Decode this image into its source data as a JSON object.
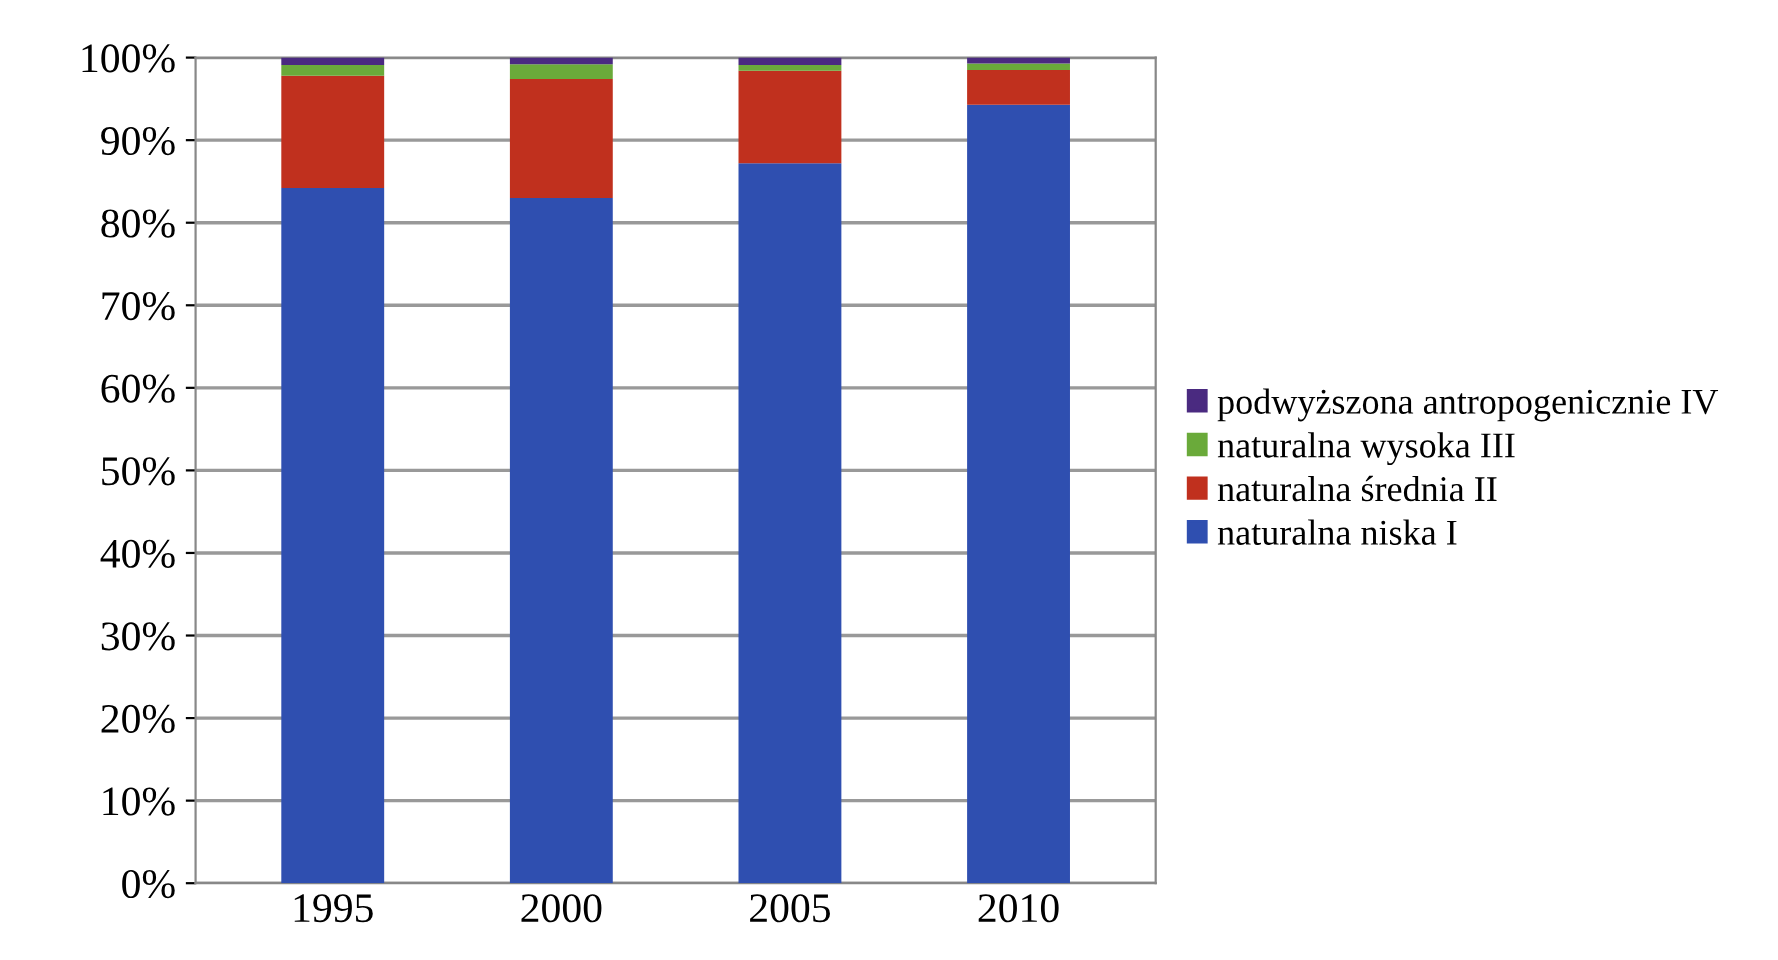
{
  "chart_data": {
    "type": "bar",
    "stacked": true,
    "categories": [
      "1995",
      "2000",
      "2005",
      "2010"
    ],
    "series": [
      {
        "name": "naturalna niska I",
        "color": "#2f4fb0",
        "values": [
          84.2,
          83.0,
          87.2,
          94.3
        ]
      },
      {
        "name": "naturalna średnia II",
        "color": "#c0301e",
        "values": [
          13.6,
          14.4,
          11.2,
          4.2
        ]
      },
      {
        "name": "naturalna wysoka III",
        "color": "#6aaa3a",
        "values": [
          1.3,
          1.8,
          0.7,
          0.8
        ]
      },
      {
        "name": "podwyższona antropogenicznie IV",
        "color": "#4a2a80",
        "values": [
          0.9,
          0.8,
          0.9,
          0.7
        ]
      }
    ],
    "ylim": [
      0,
      100
    ],
    "yticks": [
      {
        "value": 0,
        "label": "0%"
      },
      {
        "value": 10,
        "label": "10%"
      },
      {
        "value": 20,
        "label": "20%"
      },
      {
        "value": 30,
        "label": "30%"
      },
      {
        "value": 40,
        "label": "40%"
      },
      {
        "value": 50,
        "label": "50%"
      },
      {
        "value": 60,
        "label": "60%"
      },
      {
        "value": 70,
        "label": "70%"
      },
      {
        "value": 80,
        "label": "80%"
      },
      {
        "value": 90,
        "label": "90%"
      },
      {
        "value": 100,
        "label": "100%"
      }
    ],
    "grid": "y",
    "legend": "right"
  }
}
